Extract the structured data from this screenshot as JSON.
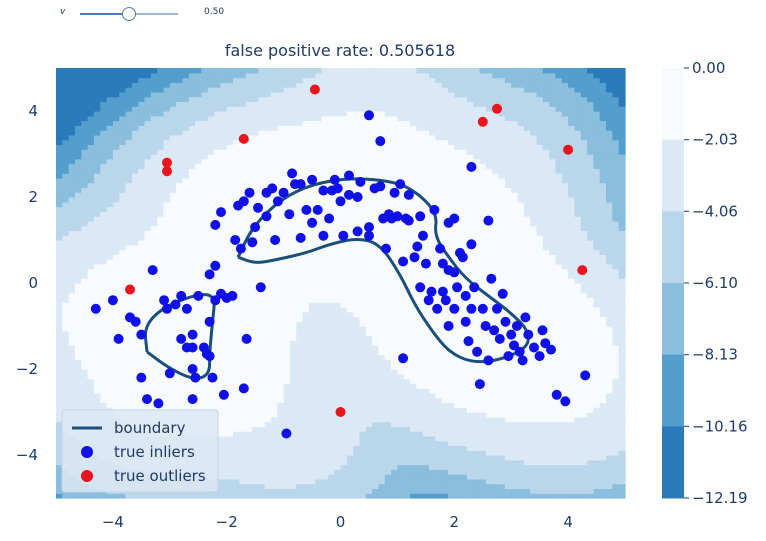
{
  "slider": {
    "label": "v",
    "value": 0.5,
    "value_text": "0.50"
  },
  "chart_data": {
    "type": "contour",
    "title": "false positive rate: 0.505618",
    "xlabel": "",
    "ylabel": "",
    "xlim": [
      -5,
      5
    ],
    "ylim": [
      -5,
      5
    ],
    "xticks": [
      -4,
      -2,
      0,
      2,
      4
    ],
    "yticks": [
      -4,
      -2,
      0,
      2,
      4
    ],
    "xtick_labels": [
      "−4",
      "−2",
      "0",
      "2",
      "4"
    ],
    "ytick_labels": [
      "−4",
      "−2",
      "0",
      "2",
      "4"
    ],
    "grid": false,
    "legend_position": "lower-left",
    "colormap": "Blues_r",
    "colorbar": {
      "levels": [
        0.0,
        -2.03,
        -4.06,
        -6.1,
        -8.13,
        -10.16,
        -12.19
      ],
      "labels": [
        "0.00",
        "−2.03",
        "−4.06",
        "−6.10",
        "−8.13",
        "−10.16",
        "−12.19"
      ],
      "colors": [
        "#f7fbff",
        "#dbe9f6",
        "#bad6eb",
        "#89bedc",
        "#539ecd",
        "#2b7bba",
        "#0b559f"
      ]
    },
    "colors": {
      "inlier": "#1010e8",
      "outlier": "#e8141e",
      "boundary": "#1b4f7a",
      "text": "#1f3a6e"
    },
    "series": [
      {
        "name": "boundary",
        "type": "line"
      },
      {
        "name": "true inliers",
        "type": "scatter",
        "points": [
          [
            -4.3,
            -0.6
          ],
          [
            -4.0,
            -0.4
          ],
          [
            -3.9,
            -1.3
          ],
          [
            -3.7,
            -0.8
          ],
          [
            -3.6,
            -0.9
          ],
          [
            -3.5,
            -2.2
          ],
          [
            -3.5,
            -1.2
          ],
          [
            -3.4,
            -2.7
          ],
          [
            -3.3,
            0.3
          ],
          [
            -3.2,
            -2.8
          ],
          [
            -3.1,
            -0.4
          ],
          [
            -3.05,
            -0.6
          ],
          [
            -3.0,
            -2.1
          ],
          [
            -2.9,
            -0.5
          ],
          [
            -2.8,
            -0.3
          ],
          [
            -2.8,
            -1.3
          ],
          [
            -2.7,
            -0.6
          ],
          [
            -2.7,
            -1.5
          ],
          [
            -2.6,
            -1.2
          ],
          [
            -2.6,
            -2.0
          ],
          [
            -2.55,
            -2.2
          ],
          [
            -2.6,
            -1.5
          ],
          [
            -2.6,
            -2.7
          ],
          [
            -2.5,
            -0.3
          ],
          [
            -2.4,
            -1.5
          ],
          [
            -2.35,
            -1.65
          ],
          [
            -2.3,
            -1.7
          ],
          [
            -2.25,
            -2.2
          ],
          [
            -2.3,
            -0.9
          ],
          [
            -2.2,
            -0.4
          ],
          [
            -2.1,
            -0.25
          ],
          [
            -2.05,
            -2.6
          ],
          [
            -2.3,
            0.2
          ],
          [
            -2.2,
            0.4
          ],
          [
            -2.2,
            1.35
          ],
          [
            -2.1,
            1.65
          ],
          [
            -2.0,
            -0.35
          ],
          [
            -1.9,
            -0.3
          ],
          [
            -1.85,
            1.0
          ],
          [
            -1.8,
            1.8
          ],
          [
            -1.75,
            0.8
          ],
          [
            -1.7,
            1.9
          ],
          [
            -1.65,
            -1.3
          ],
          [
            -1.6,
            2.1
          ],
          [
            -1.55,
            0.95
          ],
          [
            -1.5,
            1.3
          ],
          [
            -1.45,
            1.75
          ],
          [
            -1.4,
            -0.1
          ],
          [
            -1.3,
            2.1
          ],
          [
            -1.3,
            1.55
          ],
          [
            -1.2,
            2.2
          ],
          [
            -1.15,
            1.0
          ],
          [
            -1.1,
            1.9
          ],
          [
            -1.0,
            2.1
          ],
          [
            -0.9,
            1.6
          ],
          [
            -0.85,
            2.55
          ],
          [
            -0.8,
            2.3
          ],
          [
            -0.7,
            2.3
          ],
          [
            -0.7,
            1.05
          ],
          [
            -0.6,
            1.7
          ],
          [
            -0.5,
            1.4
          ],
          [
            -0.5,
            2.4
          ],
          [
            -0.4,
            1.7
          ],
          [
            -0.3,
            2.15
          ],
          [
            -0.3,
            1.1
          ],
          [
            -0.2,
            1.5
          ],
          [
            -0.15,
            2.15
          ],
          [
            -0.1,
            2.4
          ],
          [
            -0.05,
            2.2
          ],
          [
            0.0,
            1.9
          ],
          [
            0.05,
            1.1
          ],
          [
            0.15,
            2.05
          ],
          [
            0.15,
            2.5
          ],
          [
            0.3,
            1.2
          ],
          [
            0.3,
            2.0
          ],
          [
            0.35,
            2.35
          ],
          [
            0.5,
            1.3
          ],
          [
            0.5,
            1.1
          ],
          [
            0.6,
            2.2
          ],
          [
            0.7,
            2.25
          ],
          [
            0.75,
            1.5
          ],
          [
            0.8,
            0.8
          ],
          [
            0.85,
            1.6
          ],
          [
            0.9,
            1.5
          ],
          [
            0.95,
            2.1
          ],
          [
            1.0,
            1.55
          ],
          [
            1.05,
            2.3
          ],
          [
            1.1,
            0.5
          ],
          [
            1.15,
            1.5
          ],
          [
            1.2,
            1.45
          ],
          [
            1.2,
            2.05
          ],
          [
            1.3,
            0.6
          ],
          [
            1.35,
            0.85
          ],
          [
            1.4,
            1.55
          ],
          [
            1.4,
            -0.1
          ],
          [
            1.45,
            1.1
          ],
          [
            1.5,
            0.45
          ],
          [
            1.55,
            -0.4
          ],
          [
            1.6,
            -0.2
          ],
          [
            1.65,
            1.7
          ],
          [
            1.7,
            -0.6
          ],
          [
            1.75,
            0.8
          ],
          [
            1.8,
            0.45
          ],
          [
            1.8,
            -0.2
          ],
          [
            1.85,
            -0.4
          ],
          [
            1.9,
            1.4
          ],
          [
            1.9,
            0.3
          ],
          [
            1.9,
            -1.0
          ],
          [
            2.0,
            0.25
          ],
          [
            2.0,
            1.5
          ],
          [
            2.0,
            -0.6
          ],
          [
            2.05,
            -0.1
          ],
          [
            2.1,
            0.7
          ],
          [
            2.15,
            0.6
          ],
          [
            2.2,
            -0.3
          ],
          [
            2.2,
            -0.9
          ],
          [
            2.25,
            -1.35
          ],
          [
            2.3,
            -0.6
          ],
          [
            2.3,
            0.9
          ],
          [
            2.35,
            -0.1
          ],
          [
            2.4,
            -1.6
          ],
          [
            2.45,
            -2.35
          ],
          [
            2.5,
            -0.6
          ],
          [
            2.55,
            -1.0
          ],
          [
            2.6,
            -1.8
          ],
          [
            2.65,
            0.1
          ],
          [
            2.7,
            -1.1
          ],
          [
            2.75,
            -0.6
          ],
          [
            2.8,
            -1.3
          ],
          [
            2.85,
            -0.25
          ],
          [
            2.9,
            -0.9
          ],
          [
            2.95,
            -1.7
          ],
          [
            3.0,
            -1.2
          ],
          [
            3.05,
            -1.45
          ],
          [
            3.1,
            -1.0
          ],
          [
            3.15,
            -1.6
          ],
          [
            3.2,
            -1.8
          ],
          [
            3.25,
            -0.8
          ],
          [
            3.3,
            -1.2
          ],
          [
            3.4,
            -1.5
          ],
          [
            3.5,
            -1.7
          ],
          [
            3.55,
            -1.1
          ],
          [
            3.6,
            -1.4
          ],
          [
            3.7,
            -1.55
          ],
          [
            3.8,
            -2.6
          ],
          [
            3.95,
            -2.75
          ],
          [
            4.3,
            -2.15
          ],
          [
            -1.7,
            -2.45
          ],
          [
            -0.95,
            -3.5
          ],
          [
            0.5,
            3.9
          ],
          [
            0.7,
            3.3
          ],
          [
            1.1,
            -1.75
          ],
          [
            2.3,
            2.7
          ],
          [
            2.6,
            1.45
          ]
        ]
      },
      {
        "name": "true outliers",
        "type": "scatter",
        "points": [
          [
            -3.7,
            -0.15
          ],
          [
            -3.05,
            2.8
          ],
          [
            -3.05,
            2.6
          ],
          [
            -1.7,
            3.35
          ],
          [
            -0.45,
            4.5
          ],
          [
            0.0,
            -3.0
          ],
          [
            2.5,
            3.75
          ],
          [
            2.75,
            4.05
          ],
          [
            4.0,
            3.1
          ],
          [
            4.25,
            0.3
          ]
        ]
      }
    ]
  }
}
